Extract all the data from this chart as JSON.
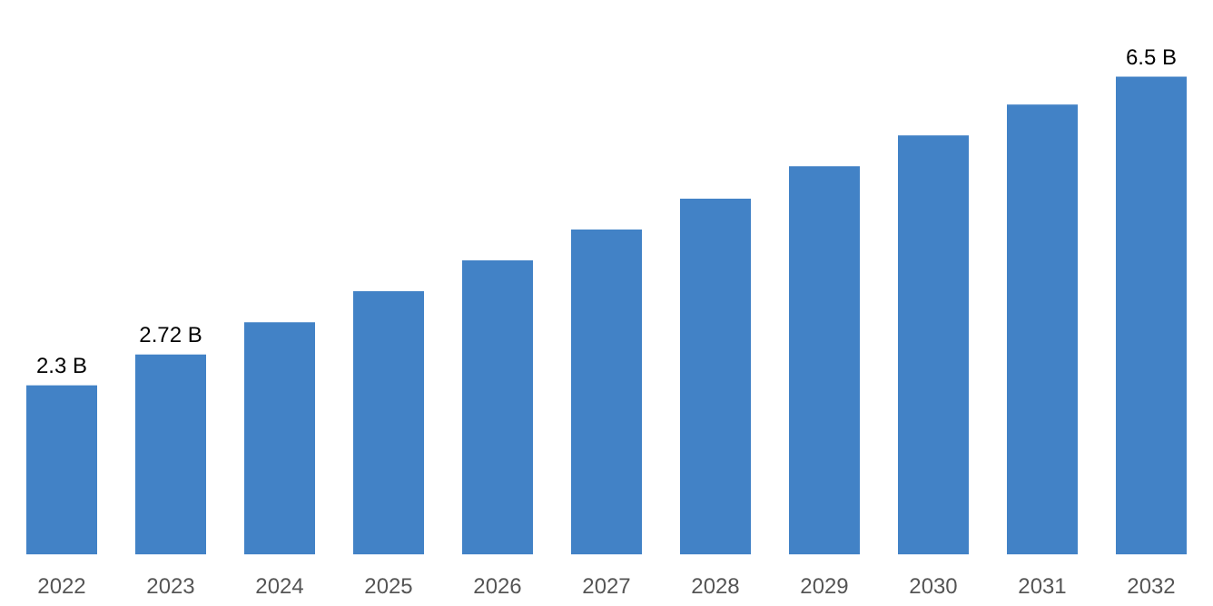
{
  "chart_data": {
    "type": "bar",
    "categories": [
      "2022",
      "2023",
      "2024",
      "2025",
      "2026",
      "2027",
      "2028",
      "2029",
      "2030",
      "2031",
      "2032"
    ],
    "values": [
      2.3,
      2.72,
      3.16,
      3.58,
      4.0,
      4.42,
      4.84,
      5.28,
      5.7,
      6.12,
      6.5
    ],
    "color": "#4282c6",
    "value_labels": [
      "2.3 B",
      "2.72 B",
      null,
      null,
      null,
      null,
      null,
      null,
      null,
      null,
      "6.5 B"
    ],
    "tick_labels": "x",
    "grid": false
  }
}
